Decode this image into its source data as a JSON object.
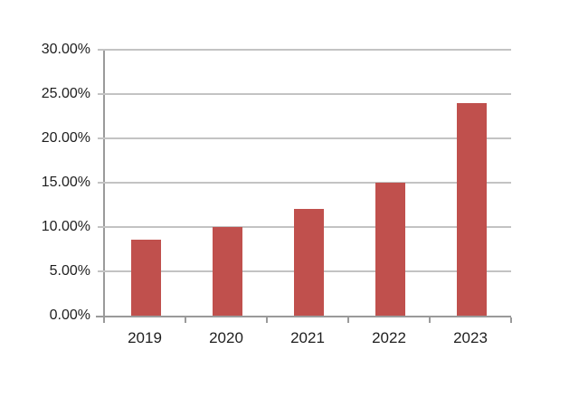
{
  "chart_data": {
    "type": "bar",
    "title": "",
    "xlabel": "",
    "ylabel": "",
    "categories": [
      "2019",
      "2020",
      "2021",
      "2022",
      "2023"
    ],
    "values": [
      8.6,
      10,
      12,
      15,
      24
    ],
    "value_format": "percent",
    "ylim": [
      0,
      30
    ],
    "y_ticks": [
      {
        "value": 0,
        "label": "0.00%"
      },
      {
        "value": 5,
        "label": "5.00%"
      },
      {
        "value": 10,
        "label": "10.00%"
      },
      {
        "value": 15,
        "label": "15.00%"
      },
      {
        "value": 20,
        "label": "20.00%"
      },
      {
        "value": 25,
        "label": "25.00%"
      },
      {
        "value": 30,
        "label": "30.00%"
      }
    ],
    "grid": true,
    "legend": false
  },
  "colors": {
    "bar": "#C0504D",
    "gridline": "#C3C3C3",
    "axis": "#9A9A9A",
    "text": "#1F1F1F",
    "background": "#FFFFFF"
  }
}
